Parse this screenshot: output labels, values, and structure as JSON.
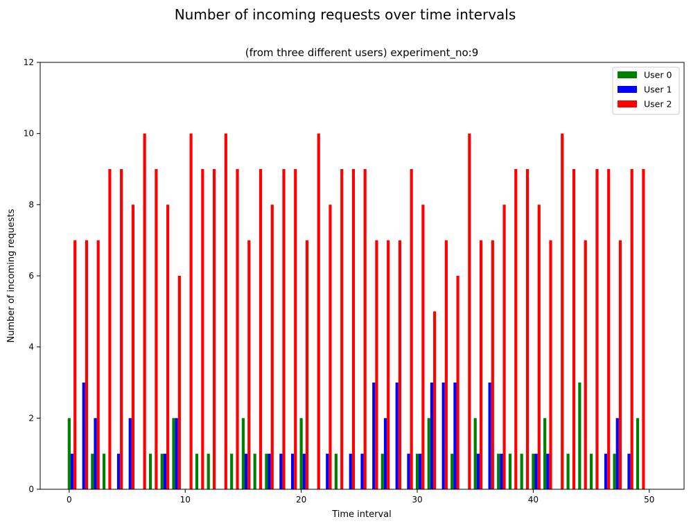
{
  "chart_data": {
    "type": "bar",
    "suptitle": "Number of incoming requests over time intervals",
    "title": "(from three different users) experiment_no:9",
    "xlabel": "Time interval",
    "ylabel": "Number of incoming requests",
    "xlim": [
      -2.5,
      53
    ],
    "ylim": [
      0,
      12
    ],
    "xticks": [
      0,
      10,
      20,
      30,
      40,
      50
    ],
    "yticks": [
      0,
      2,
      4,
      6,
      8,
      10,
      12
    ],
    "grid": false,
    "legend_position": "top-right",
    "x": [
      0,
      1,
      2,
      3,
      4,
      5,
      6,
      7,
      8,
      9,
      10,
      11,
      12,
      13,
      14,
      15,
      16,
      17,
      18,
      19,
      20,
      21,
      22,
      23,
      24,
      25,
      26,
      27,
      28,
      29,
      30,
      31,
      32,
      33,
      34,
      35,
      36,
      37,
      38,
      39,
      40,
      41,
      42,
      43,
      44,
      45,
      46,
      47,
      48,
      49
    ],
    "series": [
      {
        "name": "User 0",
        "color": "#008000",
        "values": [
          2,
          0,
          1,
          1,
          0,
          0,
          0,
          1,
          1,
          2,
          0,
          1,
          1,
          0,
          1,
          2,
          1,
          1,
          0,
          0,
          2,
          0,
          0,
          1,
          0,
          0,
          0,
          1,
          0,
          0,
          1,
          2,
          0,
          1,
          0,
          2,
          0,
          1,
          1,
          1,
          1,
          2,
          0,
          1,
          3,
          1,
          0,
          1,
          0,
          2
        ]
      },
      {
        "name": "User 1",
        "color": "#0000ff",
        "values": [
          1,
          3,
          2,
          0,
          1,
          2,
          0,
          0,
          1,
          2,
          0,
          0,
          0,
          0,
          0,
          1,
          0,
          1,
          1,
          1,
          1,
          0,
          1,
          0,
          1,
          1,
          3,
          2,
          3,
          1,
          1,
          3,
          3,
          3,
          0,
          1,
          3,
          1,
          0,
          0,
          1,
          1,
          0,
          0,
          0,
          0,
          1,
          2,
          1,
          0
        ]
      },
      {
        "name": "User 2",
        "color": "#ff0000",
        "values": [
          7,
          7,
          7,
          9,
          9,
          8,
          10,
          9,
          8,
          6,
          10,
          9,
          9,
          10,
          9,
          7,
          9,
          8,
          9,
          9,
          7,
          10,
          8,
          9,
          9,
          9,
          7,
          7,
          7,
          9,
          8,
          5,
          7,
          6,
          10,
          7,
          7,
          8,
          9,
          9,
          8,
          7,
          10,
          9,
          7,
          9,
          9,
          7,
          9,
          9
        ]
      }
    ]
  }
}
